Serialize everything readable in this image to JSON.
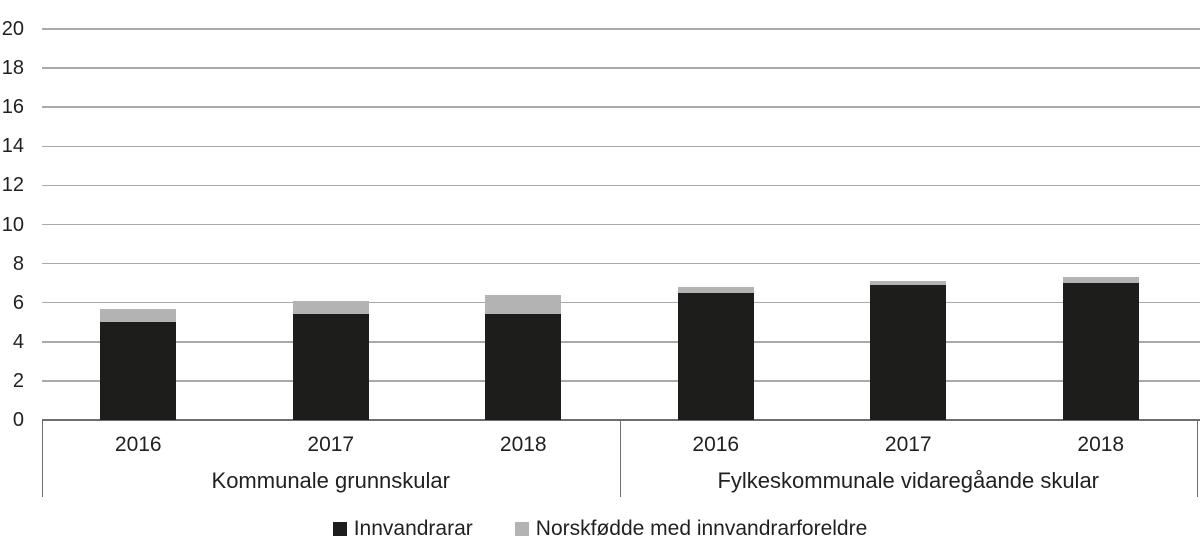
{
  "chart_data": {
    "type": "bar",
    "stacked": true,
    "title": "",
    "xlabel": "",
    "ylabel": "",
    "ylim": [
      0,
      20
    ],
    "yticks": [
      0,
      2,
      4,
      6,
      8,
      10,
      12,
      14,
      16,
      18,
      20
    ],
    "grid": true,
    "legend_position": "bottom",
    "groups": [
      {
        "label": "Kommunale grunnskular",
        "categories": [
          "2016",
          "2017",
          "2018"
        ]
      },
      {
        "label": "Fylkeskommunale vidaregåande skular",
        "categories": [
          "2016",
          "2017",
          "2018"
        ]
      }
    ],
    "series": [
      {
        "name": "Innvandrarar",
        "color": "#1d1d1b",
        "values": [
          [
            5.0,
            5.4,
            5.4
          ],
          [
            6.5,
            6.9,
            7.0
          ]
        ]
      },
      {
        "name": "Norskfødde med innvandrarforeldre",
        "color": "#b3b3b3",
        "values": [
          [
            0.7,
            0.7,
            1.0
          ],
          [
            0.3,
            0.2,
            0.3
          ]
        ]
      }
    ],
    "stack_totals": [
      [
        5.7,
        6.1,
        6.4
      ],
      [
        6.8,
        7.1,
        7.3
      ]
    ]
  },
  "style": {
    "gridline_color": "#a9a9a9",
    "axis_line_color": "#6e6e6e",
    "text_color": "#231f20",
    "background": "#ffffff"
  }
}
